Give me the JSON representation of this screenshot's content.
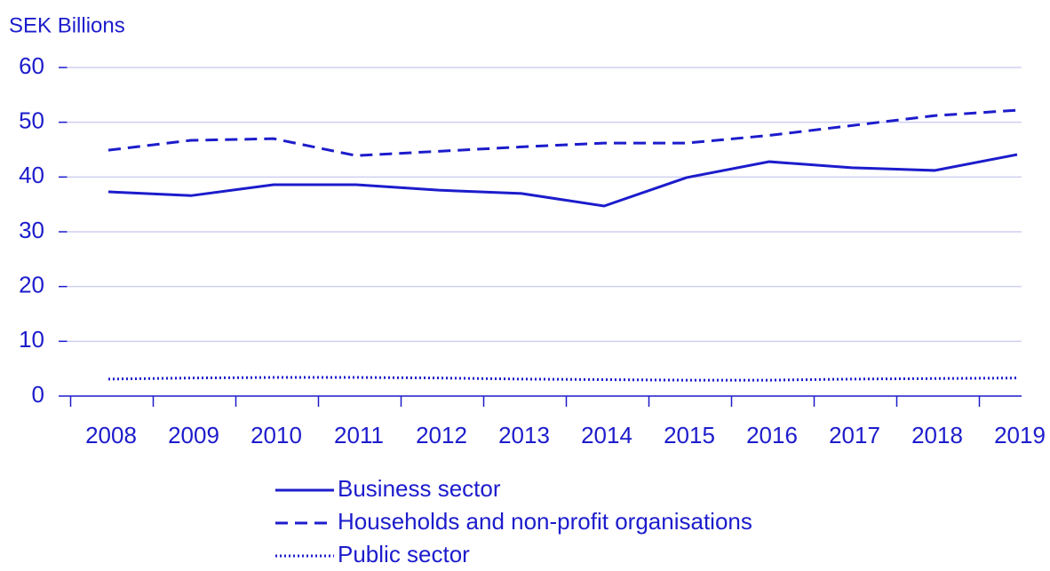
{
  "chart_data": {
    "type": "line",
    "y_label": "SEK Billions",
    "categories": [
      "2008",
      "2009",
      "2010",
      "2011",
      "2012",
      "2013",
      "2014",
      "2015",
      "2016",
      "2017",
      "2018",
      "2019"
    ],
    "series": [
      {
        "name": "Business sector",
        "color": "#1c1ccc",
        "style": "solid",
        "values": [
          37.3,
          36.6,
          38.6,
          38.6,
          37.6,
          37.0,
          34.7,
          39.9,
          42.8,
          41.7,
          41.2,
          44.1
        ]
      },
      {
        "name": "Households and non-profit organisations",
        "color": "#1c1ccc",
        "style": "dashed",
        "values": [
          44.9,
          46.7,
          47.0,
          43.9,
          44.7,
          45.5,
          46.2,
          46.2,
          47.6,
          49.4,
          51.2,
          52.2
        ]
      },
      {
        "name": "Public sector",
        "color": "#1c1ccc",
        "style": "dotted",
        "values": [
          3.1,
          3.3,
          3.4,
          3.4,
          3.3,
          3.1,
          3.0,
          2.9,
          2.9,
          3.1,
          3.2,
          3.3
        ]
      }
    ],
    "ylim": [
      0,
      60
    ],
    "yticks": [
      0,
      10,
      20,
      30,
      40,
      50,
      60
    ],
    "grid": true
  }
}
